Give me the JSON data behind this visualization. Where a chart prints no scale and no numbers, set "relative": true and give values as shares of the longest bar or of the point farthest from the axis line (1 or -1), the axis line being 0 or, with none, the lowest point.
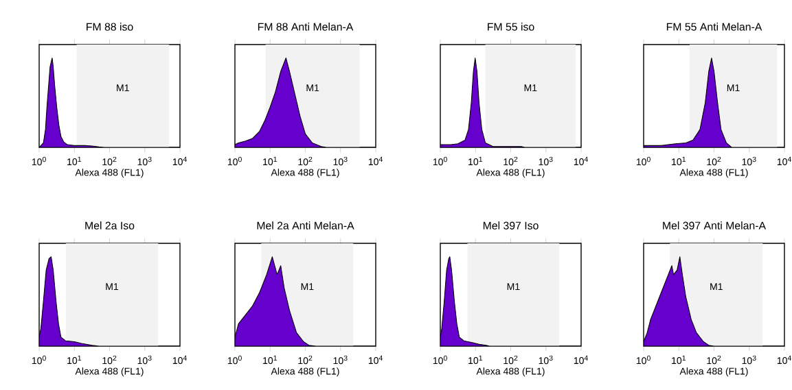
{
  "chart_data": [
    {
      "type": "area",
      "title": "FM 88 iso",
      "xlabel": "Alexa 488 (FL1)",
      "relative": true,
      "log": "x",
      "color": "#6600cc",
      "xlim": [
        1,
        10000
      ],
      "xticks": [
        {
          "value": 1,
          "label": "10$^{0}$"
        },
        {
          "value": 10,
          "label": "10$^{1}$"
        },
        {
          "value": 100,
          "label": "10$^{2}$"
        },
        {
          "value": 1000,
          "label": "10$^{3}$"
        },
        {
          "value": 10000,
          "label": "10$^{4}$"
        }
      ],
      "x": [
        1,
        1.12,
        1.32,
        1.51,
        1.66,
        1.86,
        2.04,
        2.24,
        2.34,
        2.51,
        2.75,
        3.16,
        3.63,
        4.17,
        5.01,
        6.31,
        10,
        20,
        31.6,
        50.1,
        70.8,
        10000
      ],
      "values": [
        0,
        0.02,
        0.05,
        0.2,
        0.45,
        0.7,
        0.9,
        0.97,
        1,
        0.9,
        0.7,
        0.45,
        0.25,
        0.12,
        0.06,
        0.03,
        0.02,
        0.02,
        0.015,
        0.005,
        0,
        0
      ],
      "bands": [
        {
          "axis": "x",
          "from": 11.5,
          "to": 4900,
          "label": "M1"
        }
      ]
    },
    {
      "type": "area",
      "title": "FM 88 Anti Melan-A",
      "xlabel": "Alexa 488 (FL1)",
      "relative": true,
      "log": "x",
      "color": "#6600cc",
      "xlim": [
        1,
        10000
      ],
      "xticks": [
        {
          "value": 1,
          "label": "10$^{0}$"
        },
        {
          "value": 10,
          "label": "10$^{1}$"
        },
        {
          "value": 100,
          "label": "10$^{2}$"
        },
        {
          "value": 1000,
          "label": "10$^{3}$"
        },
        {
          "value": 10000,
          "label": "10$^{4}$"
        }
      ],
      "x": [
        1,
        1.26,
        2,
        3.16,
        5.01,
        7.08,
        10,
        14.1,
        20,
        28.2,
        35.5,
        50.1,
        70.8,
        100,
        158,
        282,
        398,
        10000
      ],
      "values": [
        0.03,
        0.05,
        0.07,
        0.1,
        0.18,
        0.3,
        0.45,
        0.62,
        0.85,
        1,
        0.85,
        0.6,
        0.35,
        0.15,
        0.05,
        0.01,
        0,
        0
      ],
      "bands": [
        {
          "axis": "x",
          "from": 7.4,
          "to": 3500,
          "label": "M1"
        }
      ]
    },
    {
      "type": "area",
      "title": "FM 55 iso",
      "xlabel": "Alexa 488 (FL1)",
      "relative": true,
      "log": "x",
      "color": "#6600cc",
      "xlim": [
        1,
        10000
      ],
      "xticks": [
        {
          "value": 1,
          "label": "10$^{0}$"
        },
        {
          "value": 10,
          "label": "10$^{1}$"
        },
        {
          "value": 100,
          "label": "10$^{2}$"
        },
        {
          "value": 1000,
          "label": "10$^{3}$"
        },
        {
          "value": 10000,
          "label": "10$^{4}$"
        }
      ],
      "x": [
        1,
        2,
        3.16,
        5.01,
        6.31,
        7.59,
        8.71,
        9.77,
        11,
        12.6,
        15.1,
        19.1,
        31.6,
        200,
        251,
        10000
      ],
      "values": [
        0.03,
        0.03,
        0.04,
        0.08,
        0.2,
        0.5,
        0.85,
        1,
        0.85,
        0.5,
        0.2,
        0.05,
        0.01,
        0.01,
        0,
        0
      ],
      "bands": [
        {
          "axis": "x",
          "from": 19,
          "to": 7000,
          "label": "M1"
        }
      ]
    },
    {
      "type": "area",
      "title": "FM 55 Anti Melan-A",
      "xlabel": "Alexa 488 (FL1)",
      "relative": true,
      "log": "x",
      "color": "#6600cc",
      "xlim": [
        1,
        10000
      ],
      "xticks": [
        {
          "value": 1,
          "label": "10$^{0}$"
        },
        {
          "value": 10,
          "label": "10$^{1}$"
        },
        {
          "value": 100,
          "label": "10$^{2}$"
        },
        {
          "value": 1000,
          "label": "10$^{3}$"
        },
        {
          "value": 10000,
          "label": "10$^{4}$"
        }
      ],
      "x": [
        1,
        3.16,
        7.94,
        15.8,
        25.1,
        39.8,
        56.2,
        70.8,
        85.1,
        100,
        126,
        158,
        224,
        316,
        10000
      ],
      "values": [
        0.02,
        0.02,
        0.04,
        0.05,
        0.08,
        0.2,
        0.5,
        0.85,
        1,
        0.85,
        0.5,
        0.2,
        0.05,
        0,
        0
      ],
      "bands": [
        {
          "axis": "x",
          "from": 20,
          "to": 6200,
          "label": "M1"
        }
      ]
    },
    {
      "type": "area",
      "title": "Mel 2a Iso",
      "xlabel": "Alexa 488 (FL1)",
      "relative": true,
      "log": "x",
      "color": "#6600cc",
      "xlim": [
        1,
        10000
      ],
      "xticks": [
        {
          "value": 1,
          "label": "10$^{0}$"
        },
        {
          "value": 10,
          "label": "10$^{1}$"
        },
        {
          "value": 100,
          "label": "10$^{2}$"
        },
        {
          "value": 1000,
          "label": "10$^{3}$"
        },
        {
          "value": 10000,
          "label": "10$^{4}$"
        }
      ],
      "x": [
        1,
        1.12,
        1.32,
        1.58,
        1.91,
        2.19,
        2.51,
        3.02,
        3.55,
        4.17,
        5.62,
        10,
        15.8,
        31.6,
        50.1,
        10000
      ],
      "values": [
        0.1,
        0.2,
        0.5,
        0.85,
        0.98,
        1,
        0.85,
        0.5,
        0.25,
        0.1,
        0.06,
        0.05,
        0.03,
        0.01,
        0,
        0
      ],
      "bands": [
        {
          "axis": "x",
          "from": 5.7,
          "to": 2400,
          "label": "M1"
        }
      ]
    },
    {
      "type": "area",
      "title": "Mel 2a Anti Melan-A",
      "xlabel": "Alexa 488 (FL1)",
      "relative": true,
      "log": "x",
      "color": "#6600cc",
      "xlim": [
        1,
        10000
      ],
      "xticks": [
        {
          "value": 1,
          "label": "10$^{0}$"
        },
        {
          "value": 10,
          "label": "10$^{1}$"
        },
        {
          "value": 100,
          "label": "10$^{2}$"
        },
        {
          "value": 1000,
          "label": "10$^{3}$"
        },
        {
          "value": 10000,
          "label": "10$^{4}$"
        }
      ],
      "x": [
        1,
        1.26,
        2,
        3.16,
        5.01,
        7.94,
        11.5,
        15.8,
        20,
        25.1,
        35.5,
        56.2,
        89.1,
        126,
        200,
        10000
      ],
      "values": [
        0.1,
        0.25,
        0.35,
        0.45,
        0.6,
        0.8,
        1,
        0.8,
        0.9,
        0.65,
        0.4,
        0.15,
        0.05,
        0.01,
        0,
        0
      ],
      "bands": [
        {
          "axis": "x",
          "from": 5.6,
          "to": 2300,
          "label": "M1"
        }
      ]
    },
    {
      "type": "area",
      "title": "Mel 397 Iso",
      "xlabel": "Alexa 488 (FL1)",
      "relative": true,
      "log": "x",
      "color": "#6600cc",
      "xlim": [
        1,
        10000
      ],
      "xticks": [
        {
          "value": 1,
          "label": "10$^{0}$"
        },
        {
          "value": 10,
          "label": "10$^{1}$"
        },
        {
          "value": 100,
          "label": "10$^{2}$"
        },
        {
          "value": 1000,
          "label": "10$^{3}$"
        },
        {
          "value": 10000,
          "label": "10$^{4}$"
        }
      ],
      "x": [
        1,
        1.1,
        1.29,
        1.51,
        1.74,
        1.86,
        2.09,
        2.51,
        2.95,
        3.47,
        4.68,
        7.94,
        12.6,
        20,
        25.1,
        10000
      ],
      "values": [
        0.1,
        0.2,
        0.5,
        0.85,
        0.98,
        1,
        0.85,
        0.5,
        0.25,
        0.1,
        0.06,
        0.04,
        0.02,
        0.01,
        0,
        0
      ],
      "bands": [
        {
          "axis": "x",
          "from": 5.9,
          "to": 2400,
          "label": "M1"
        }
      ]
    },
    {
      "type": "area",
      "title": "Mel 397 Anti Melan-A",
      "xlabel": "Alexa 488 (FL1)",
      "relative": true,
      "log": "x",
      "color": "#6600cc",
      "xlim": [
        1,
        10000
      ],
      "xticks": [
        {
          "value": 1,
          "label": "10$^{0}$"
        },
        {
          "value": 10,
          "label": "10$^{1}$"
        },
        {
          "value": 100,
          "label": "10$^{2}$"
        },
        {
          "value": 1000,
          "label": "10$^{3}$"
        },
        {
          "value": 10000,
          "label": "10$^{4}$"
        }
      ],
      "x": [
        1,
        1.26,
        1.58,
        2.24,
        3.16,
        4.47,
        6.31,
        7.08,
        8.91,
        10.7,
        12.6,
        15.8,
        22.4,
        31.6,
        50.1,
        70.8,
        100,
        10000
      ],
      "values": [
        0.05,
        0.15,
        0.3,
        0.45,
        0.6,
        0.75,
        0.9,
        0.8,
        0.85,
        1,
        0.8,
        0.55,
        0.3,
        0.15,
        0.05,
        0.01,
        0,
        0
      ],
      "bands": [
        {
          "axis": "x",
          "from": 5.6,
          "to": 2400,
          "label": "M1"
        }
      ]
    }
  ]
}
